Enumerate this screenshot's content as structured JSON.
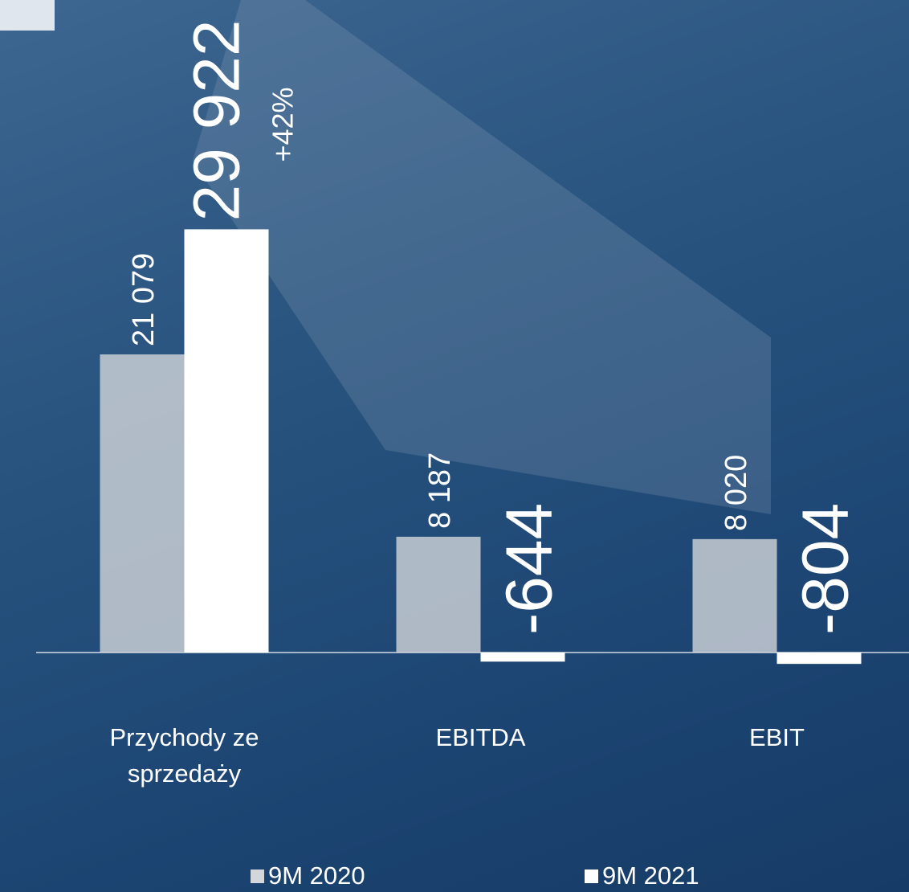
{
  "chart_data": {
    "type": "bar",
    "categories": [
      "Przychody ze sprzedaży",
      "EBITDA",
      "EBIT"
    ],
    "series": [
      {
        "name": "9M 2020",
        "color": "#d3d6db",
        "values": [
          21079,
          8187,
          8020
        ],
        "value_labels": [
          "21 079",
          "8 187",
          "8 020"
        ]
      },
      {
        "name": "9M 2021",
        "color": "#ffffff",
        "values": [
          29922,
          -644,
          -804
        ],
        "value_labels": [
          "29 922",
          "-644",
          "-804"
        ]
      }
    ],
    "annotation": "+42%",
    "ylim": [
      -5000,
      35000
    ],
    "grid": false
  }
}
